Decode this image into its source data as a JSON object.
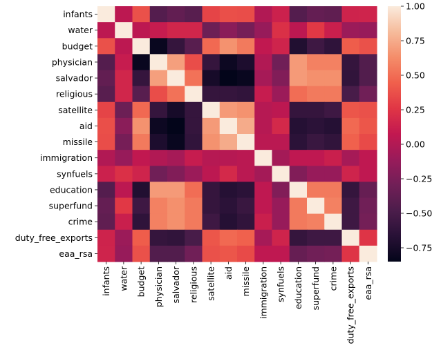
{
  "chart_data": {
    "type": "heatmap",
    "title": "",
    "xlabel": "",
    "ylabel": "",
    "variables": [
      "infants",
      "water",
      "budget",
      "physician",
      "salvador",
      "religious",
      "satellite",
      "aid",
      "missile",
      "immigration",
      "synfuels",
      "education",
      "superfund",
      "crime",
      "duty_free_exports",
      "eaa_rsa"
    ],
    "matrix": [
      [
        1.0,
        0.05,
        0.38,
        -0.44,
        -0.37,
        -0.42,
        0.32,
        0.37,
        0.36,
        0.0,
        0.13,
        -0.44,
        -0.36,
        -0.38,
        0.14,
        0.15
      ],
      [
        0.05,
        1.0,
        0.05,
        0.1,
        0.16,
        0.16,
        -0.32,
        -0.18,
        -0.27,
        -0.12,
        0.22,
        0.05,
        0.27,
        0.12,
        -0.1,
        -0.12
      ],
      [
        0.38,
        0.05,
        1.0,
        -0.82,
        -0.6,
        -0.42,
        0.48,
        0.65,
        0.55,
        0.07,
        0.15,
        -0.7,
        -0.55,
        -0.63,
        0.43,
        0.38
      ],
      [
        -0.44,
        0.1,
        -0.82,
        1.0,
        0.7,
        0.36,
        -0.6,
        -0.8,
        -0.72,
        0.0,
        -0.3,
        0.68,
        0.58,
        0.58,
        -0.6,
        -0.45
      ],
      [
        -0.37,
        0.16,
        -0.6,
        0.7,
        1.0,
        0.52,
        -0.75,
        -0.85,
        -0.82,
        -0.05,
        -0.22,
        0.68,
        0.64,
        0.64,
        -0.62,
        -0.45
      ],
      [
        -0.42,
        0.16,
        -0.42,
        0.36,
        0.52,
        1.0,
        -0.6,
        -0.6,
        -0.62,
        0.1,
        -0.1,
        0.5,
        0.55,
        0.55,
        -0.5,
        -0.3
      ],
      [
        0.32,
        -0.32,
        0.48,
        -0.6,
        -0.75,
        -0.6,
        1.0,
        0.68,
        0.65,
        0.02,
        0.05,
        -0.6,
        -0.6,
        -0.55,
        0.4,
        0.38
      ],
      [
        0.37,
        -0.18,
        0.65,
        -0.8,
        -0.85,
        -0.6,
        0.68,
        1.0,
        0.75,
        0.02,
        0.18,
        -0.68,
        -0.65,
        -0.68,
        0.48,
        0.4
      ],
      [
        0.36,
        -0.27,
        0.55,
        -0.72,
        -0.82,
        -0.62,
        0.65,
        0.75,
        1.0,
        0.04,
        0.04,
        -0.65,
        -0.58,
        -0.62,
        0.45,
        0.35
      ],
      [
        0.0,
        -0.12,
        0.07,
        0.0,
        -0.05,
        0.1,
        0.02,
        0.02,
        0.04,
        1.0,
        -0.06,
        0.06,
        0.06,
        0.12,
        -0.05,
        0.06
      ],
      [
        0.13,
        0.22,
        0.15,
        -0.3,
        -0.22,
        -0.1,
        0.05,
        0.18,
        0.04,
        -0.06,
        1.0,
        -0.22,
        -0.12,
        -0.12,
        0.15,
        0.06
      ],
      [
        -0.44,
        0.05,
        -0.7,
        0.68,
        0.68,
        0.5,
        -0.6,
        -0.68,
        -0.65,
        0.06,
        -0.22,
        1.0,
        0.55,
        0.55,
        -0.6,
        -0.35
      ],
      [
        -0.36,
        0.27,
        -0.55,
        0.58,
        0.64,
        0.55,
        -0.6,
        -0.65,
        -0.58,
        0.06,
        -0.12,
        0.55,
        1.0,
        0.58,
        -0.55,
        -0.3
      ],
      [
        -0.38,
        0.12,
        -0.63,
        0.58,
        0.64,
        0.55,
        -0.55,
        -0.68,
        -0.62,
        0.12,
        -0.12,
        0.55,
        0.58,
        1.0,
        -0.55,
        -0.28
      ],
      [
        0.14,
        -0.1,
        0.43,
        -0.6,
        -0.62,
        -0.5,
        0.4,
        0.48,
        0.45,
        -0.05,
        0.15,
        -0.6,
        -0.55,
        -0.55,
        1.0,
        0.25
      ],
      [
        0.15,
        -0.12,
        0.38,
        -0.45,
        -0.45,
        -0.3,
        0.38,
        0.4,
        0.35,
        0.06,
        0.06,
        -0.35,
        -0.3,
        -0.28,
        0.25,
        1.0
      ]
    ],
    "vmin": -0.85,
    "vmax": 1.0,
    "colormap": "rocket",
    "colorbar_ticks": [
      1.0,
      0.75,
      0.5,
      0.25,
      0.0,
      -0.25,
      -0.5,
      -0.75
    ],
    "colorbar_tick_labels": [
      "1.00",
      "0.75",
      "0.50",
      "0.25",
      "0.00",
      "−0.25",
      "−0.50",
      "−0.75"
    ],
    "grid": false,
    "legend": "colorbar right"
  }
}
